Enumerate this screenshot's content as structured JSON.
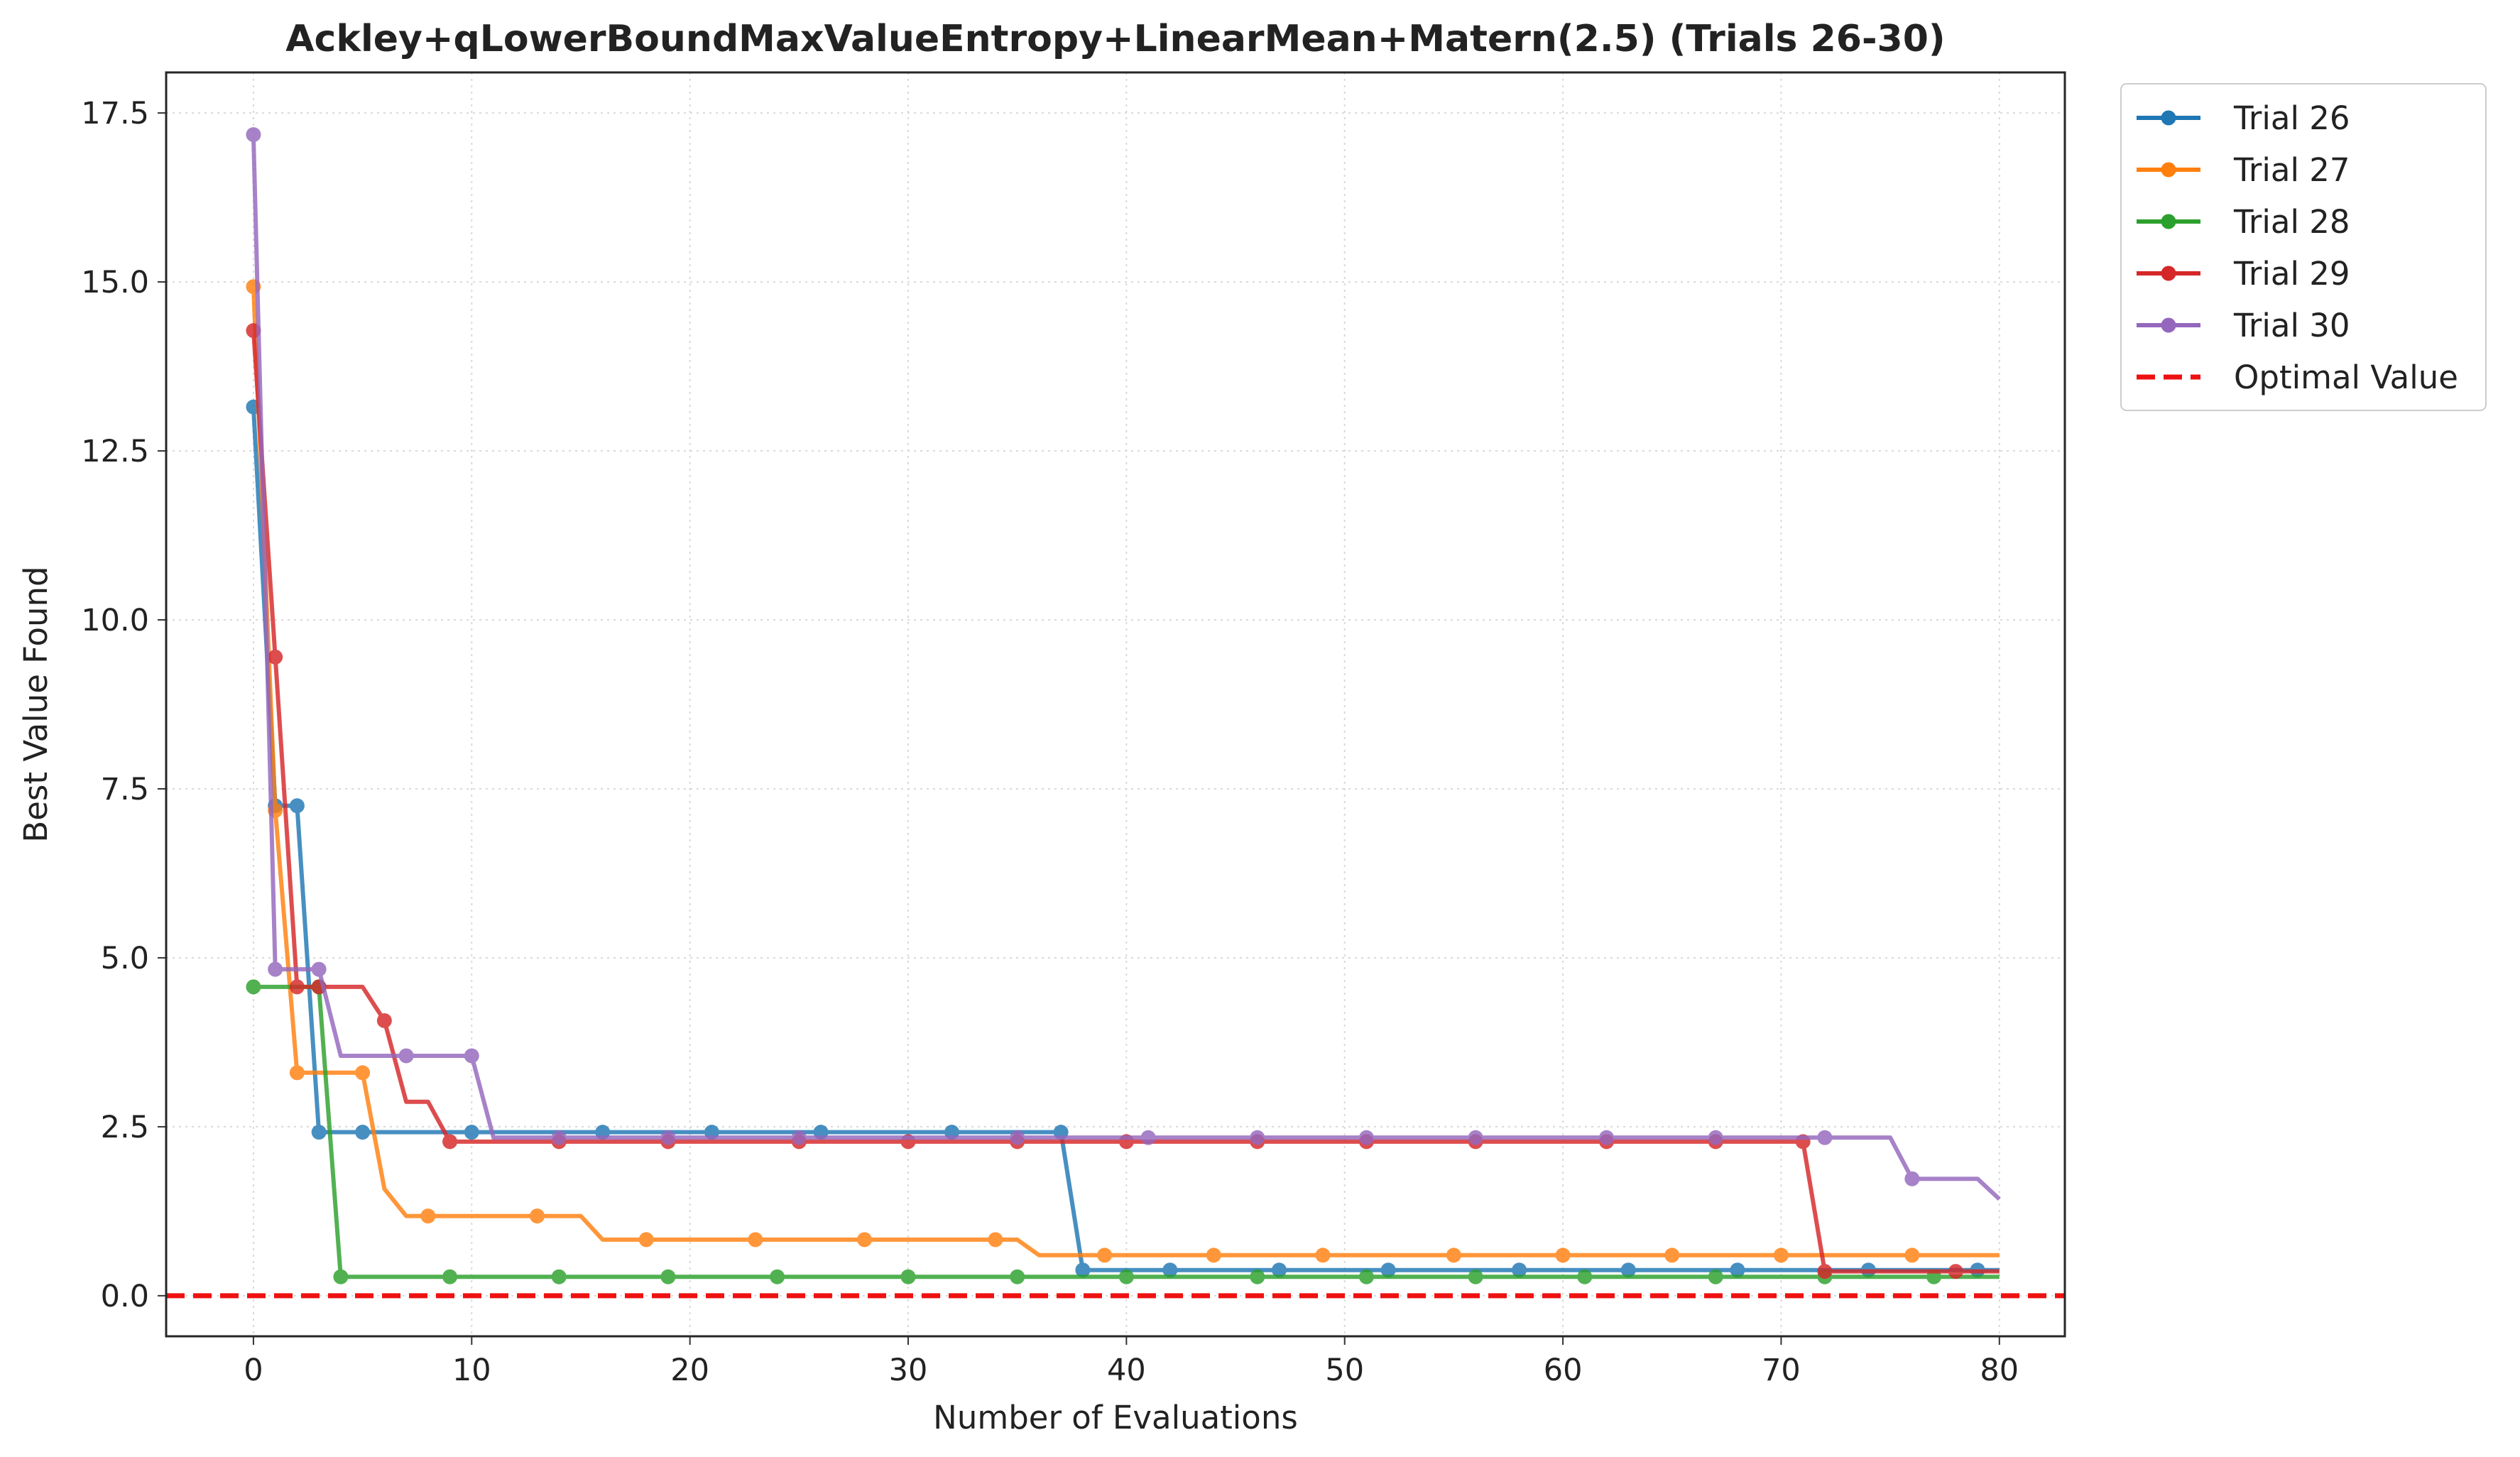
{
  "chart_data": {
    "type": "line",
    "title": "Ackley+qLowerBoundMaxValueEntropy+LinearMean+Matern(2.5) (Trials 26-30)",
    "xlabel": "Number of Evaluations",
    "ylabel": "Best Value Found",
    "xlim": [
      -4,
      83
    ],
    "ylim": [
      -0.6,
      18.1
    ],
    "xticks": [
      0,
      10,
      20,
      30,
      40,
      50,
      60,
      70,
      80
    ],
    "yticks": [
      0.0,
      2.5,
      5.0,
      7.5,
      10.0,
      12.5,
      15.0,
      17.5
    ],
    "xtick_labels": [
      "0",
      "10",
      "20",
      "30",
      "40",
      "50",
      "60",
      "70",
      "80"
    ],
    "ytick_labels": [
      "0.0",
      "2.5",
      "5.0",
      "7.5",
      "10.0",
      "12.5",
      "15.0",
      "17.5"
    ],
    "grid": true,
    "legend_position": "outside-top-right",
    "series": [
      {
        "name": "Trial 26",
        "color": "#1f77b4",
        "line": [
          [
            0,
            13.15
          ],
          [
            1,
            7.25
          ],
          [
            2,
            7.25
          ],
          [
            3,
            2.42
          ],
          [
            37,
            2.42
          ],
          [
            38,
            0.38
          ],
          [
            80,
            0.38
          ]
        ],
        "markers": [
          [
            0,
            13.15
          ],
          [
            1,
            7.25
          ],
          [
            2,
            7.25
          ],
          [
            3,
            2.42
          ],
          [
            5,
            2.42
          ],
          [
            10,
            2.42
          ],
          [
            16,
            2.42
          ],
          [
            21,
            2.42
          ],
          [
            26,
            2.42
          ],
          [
            32,
            2.42
          ],
          [
            37,
            2.42
          ],
          [
            38,
            0.38
          ],
          [
            42,
            0.38
          ],
          [
            47,
            0.38
          ],
          [
            52,
            0.38
          ],
          [
            58,
            0.38
          ],
          [
            63,
            0.38
          ],
          [
            68,
            0.38
          ],
          [
            74,
            0.38
          ],
          [
            79,
            0.38
          ]
        ]
      },
      {
        "name": "Trial 27",
        "color": "#ff7f0e",
        "line": [
          [
            0,
            14.93
          ],
          [
            1,
            7.18
          ],
          [
            2,
            3.3
          ],
          [
            5,
            3.3
          ],
          [
            6,
            1.58
          ],
          [
            7,
            1.18
          ],
          [
            15,
            1.18
          ],
          [
            16,
            0.83
          ],
          [
            35,
            0.83
          ],
          [
            36,
            0.6
          ],
          [
            80,
            0.6
          ]
        ],
        "markers": [
          [
            0,
            14.93
          ],
          [
            1,
            7.18
          ],
          [
            2,
            3.3
          ],
          [
            5,
            3.3
          ],
          [
            8,
            1.18
          ],
          [
            13,
            1.18
          ],
          [
            18,
            0.83
          ],
          [
            23,
            0.83
          ],
          [
            28,
            0.83
          ],
          [
            34,
            0.83
          ],
          [
            39,
            0.6
          ],
          [
            44,
            0.6
          ],
          [
            49,
            0.6
          ],
          [
            55,
            0.6
          ],
          [
            60,
            0.6
          ],
          [
            65,
            0.6
          ],
          [
            70,
            0.6
          ],
          [
            76,
            0.6
          ]
        ]
      },
      {
        "name": "Trial 28",
        "color": "#2ca02c",
        "line": [
          [
            0,
            4.57
          ],
          [
            3,
            4.57
          ],
          [
            4,
            0.28
          ],
          [
            80,
            0.28
          ]
        ],
        "markers": [
          [
            0,
            4.57
          ],
          [
            3,
            4.57
          ],
          [
            4,
            0.28
          ],
          [
            9,
            0.28
          ],
          [
            14,
            0.28
          ],
          [
            19,
            0.28
          ],
          [
            24,
            0.28
          ],
          [
            30,
            0.28
          ],
          [
            35,
            0.28
          ],
          [
            40,
            0.28
          ],
          [
            46,
            0.28
          ],
          [
            51,
            0.28
          ],
          [
            56,
            0.28
          ],
          [
            61,
            0.28
          ],
          [
            67,
            0.28
          ],
          [
            72,
            0.28
          ],
          [
            77,
            0.28
          ]
        ]
      },
      {
        "name": "Trial 29",
        "color": "#d62728",
        "line": [
          [
            0,
            14.28
          ],
          [
            1,
            9.45
          ],
          [
            2,
            4.57
          ],
          [
            5,
            4.57
          ],
          [
            6,
            4.07
          ],
          [
            7,
            2.87
          ],
          [
            8,
            2.87
          ],
          [
            9,
            2.28
          ],
          [
            71,
            2.28
          ],
          [
            72,
            0.36
          ],
          [
            80,
            0.36
          ]
        ],
        "markers": [
          [
            0,
            14.28
          ],
          [
            1,
            9.45
          ],
          [
            2,
            4.57
          ],
          [
            3,
            4.57
          ],
          [
            6,
            4.07
          ],
          [
            9,
            2.28
          ],
          [
            14,
            2.28
          ],
          [
            19,
            2.28
          ],
          [
            25,
            2.28
          ],
          [
            30,
            2.28
          ],
          [
            35,
            2.28
          ],
          [
            40,
            2.28
          ],
          [
            46,
            2.28
          ],
          [
            51,
            2.28
          ],
          [
            56,
            2.28
          ],
          [
            62,
            2.28
          ],
          [
            67,
            2.28
          ],
          [
            71,
            2.28
          ],
          [
            72,
            0.36
          ],
          [
            78,
            0.36
          ]
        ]
      },
      {
        "name": "Trial 30",
        "color": "#9467bd",
        "line": [
          [
            0,
            17.18
          ],
          [
            1,
            4.83
          ],
          [
            3,
            4.83
          ],
          [
            4,
            3.55
          ],
          [
            10,
            3.55
          ],
          [
            11,
            2.34
          ],
          [
            75,
            2.34
          ],
          [
            76,
            1.73
          ],
          [
            79,
            1.73
          ],
          [
            80,
            1.43
          ]
        ],
        "markers": [
          [
            0,
            17.18
          ],
          [
            1,
            4.83
          ],
          [
            3,
            4.83
          ],
          [
            7,
            3.55
          ],
          [
            10,
            3.55
          ],
          [
            14,
            2.34
          ],
          [
            19,
            2.34
          ],
          [
            25,
            2.34
          ],
          [
            35,
            2.34
          ],
          [
            41,
            2.34
          ],
          [
            46,
            2.34
          ],
          [
            51,
            2.34
          ],
          [
            56,
            2.34
          ],
          [
            62,
            2.34
          ],
          [
            67,
            2.34
          ],
          [
            72,
            2.34
          ],
          [
            76,
            1.73
          ]
        ]
      }
    ],
    "reference_line": {
      "name": "Optimal Value",
      "y": 0.0,
      "color": "#ee1111",
      "style": "dashed"
    }
  }
}
